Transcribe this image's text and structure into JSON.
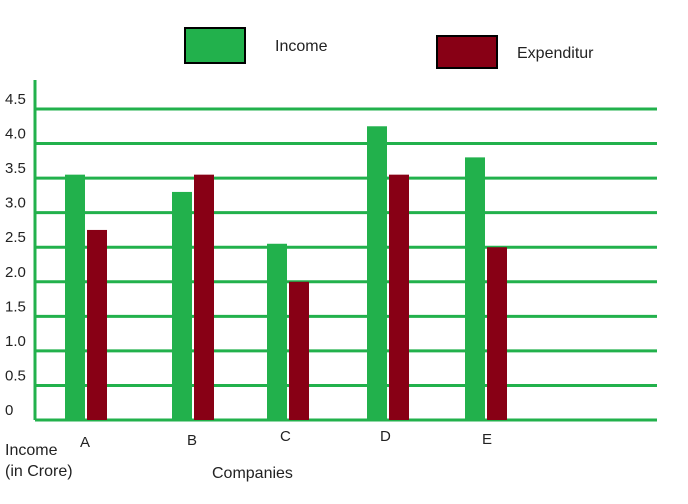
{
  "chart_data": {
    "type": "bar",
    "title": "",
    "xlabel": "Companies",
    "ylabel_line1": "Income",
    "ylabel_line2": "(in Crore)",
    "categories": [
      "A",
      "B",
      "C",
      "D",
      "E"
    ],
    "series": [
      {
        "name": "Income",
        "color": "#22b14c",
        "values": [
          3.55,
          3.3,
          2.55,
          4.25,
          3.8
        ]
      },
      {
        "name": "Expenditur",
        "color": "#880015",
        "values": [
          2.75,
          3.55,
          2.0,
          3.55,
          2.5
        ]
      }
    ],
    "yticks": [
      "0",
      "0.5",
      "1.0",
      "1.5",
      "2.0",
      "2.5",
      "3.0",
      "3.5",
      "4.0",
      "4.5"
    ],
    "ylim": [
      0,
      4.5
    ],
    "grid": true,
    "legend_position": "top"
  }
}
